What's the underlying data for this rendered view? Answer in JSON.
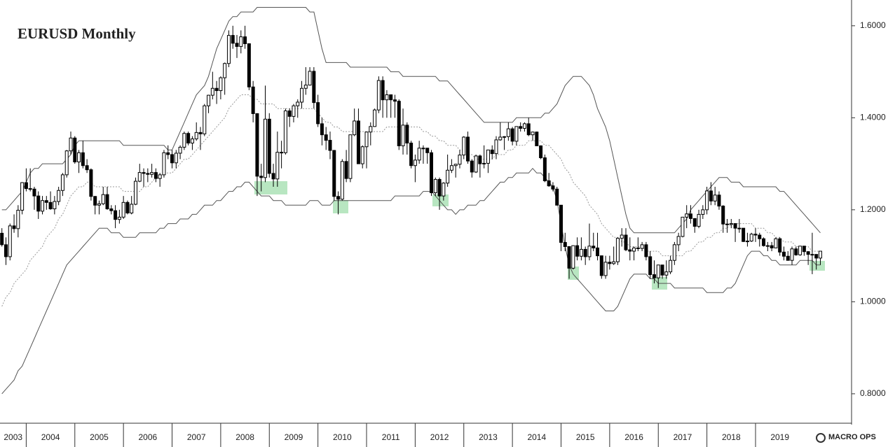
{
  "chart_data": {
    "type": "candlestick",
    "title": "EURUSD Monthly",
    "open": [
      1.149,
      1.124,
      1.098,
      1.165,
      1.159,
      1.199,
      1.259,
      1.246,
      1.245,
      1.23,
      1.197,
      1.22,
      1.216,
      1.202,
      1.218,
      1.242,
      1.276,
      1.328,
      1.356,
      1.304,
      1.324,
      1.296,
      1.287,
      1.229,
      1.21,
      1.213,
      1.233,
      1.202,
      1.198,
      1.179,
      1.184,
      1.216,
      1.193,
      1.212,
      1.262,
      1.281,
      1.279,
      1.277,
      1.281,
      1.268,
      1.276,
      1.324,
      1.32,
      1.302,
      1.323,
      1.336,
      1.366,
      1.345,
      1.354,
      1.368,
      1.365,
      1.426,
      1.449,
      1.464,
      1.459,
      1.487,
      1.518,
      1.579,
      1.562,
      1.555,
      1.576,
      1.561,
      1.467,
      1.409,
      1.273,
      1.27,
      1.397,
      1.279,
      1.267,
      1.325,
      1.324,
      1.415,
      1.403,
      1.426,
      1.434,
      1.464,
      1.471,
      1.501,
      1.433,
      1.387,
      1.363,
      1.351,
      1.329,
      1.229,
      1.223,
      1.305,
      1.268,
      1.363,
      1.393,
      1.3,
      1.337,
      1.369,
      1.381,
      1.417,
      1.481,
      1.439,
      1.45,
      1.439,
      1.436,
      1.339,
      1.384,
      1.345,
      1.296,
      1.308,
      1.334,
      1.334,
      1.324,
      1.237,
      1.266,
      1.23,
      1.258,
      1.286,
      1.296,
      1.299,
      1.319,
      1.358,
      1.306,
      1.282,
      1.317,
      1.3,
      1.301,
      1.33,
      1.322,
      1.352,
      1.358,
      1.359,
      1.376,
      1.349,
      1.381,
      1.377,
      1.387,
      1.363,
      1.369,
      1.339,
      1.313,
      1.263,
      1.252,
      1.245,
      1.21,
      1.129,
      1.12,
      1.073,
      1.122,
      1.099,
      1.114,
      1.098,
      1.121,
      1.117,
      1.1,
      1.057,
      1.086,
      1.083,
      1.087,
      1.138,
      1.145,
      1.113,
      1.11,
      1.117,
      1.116,
      1.124,
      1.098,
      1.059,
      1.052,
      1.08,
      1.058,
      1.065,
      1.09,
      1.124,
      1.142,
      1.184,
      1.191,
      1.181,
      1.164,
      1.19,
      1.2,
      1.241,
      1.219,
      1.232,
      1.208,
      1.169,
      1.168,
      1.17,
      1.16,
      1.16,
      1.131,
      1.132,
      1.147,
      1.145,
      1.137,
      1.122,
      1.122,
      1.117,
      1.137,
      1.108,
      1.099,
      1.09,
      1.115,
      1.102,
      1.121,
      1.109,
      1.103,
      1.103,
      1.095
    ],
    "high": [
      1.16,
      1.14,
      1.17,
      1.19,
      1.21,
      1.26,
      1.29,
      1.29,
      1.25,
      1.24,
      1.23,
      1.23,
      1.24,
      1.23,
      1.25,
      1.28,
      1.33,
      1.37,
      1.36,
      1.33,
      1.35,
      1.31,
      1.29,
      1.23,
      1.22,
      1.25,
      1.25,
      1.21,
      1.21,
      1.2,
      1.23,
      1.22,
      1.23,
      1.27,
      1.3,
      1.29,
      1.29,
      1.3,
      1.29,
      1.28,
      1.33,
      1.34,
      1.33,
      1.33,
      1.34,
      1.37,
      1.37,
      1.36,
      1.39,
      1.38,
      1.43,
      1.45,
      1.5,
      1.48,
      1.49,
      1.52,
      1.59,
      1.6,
      1.58,
      1.59,
      1.6,
      1.56,
      1.48,
      1.41,
      1.3,
      1.47,
      1.41,
      1.3,
      1.37,
      1.35,
      1.42,
      1.42,
      1.43,
      1.44,
      1.48,
      1.51,
      1.51,
      1.51,
      1.45,
      1.4,
      1.38,
      1.37,
      1.33,
      1.24,
      1.31,
      1.33,
      1.36,
      1.42,
      1.42,
      1.34,
      1.37,
      1.39,
      1.42,
      1.49,
      1.49,
      1.46,
      1.45,
      1.45,
      1.44,
      1.42,
      1.39,
      1.35,
      1.32,
      1.35,
      1.34,
      1.33,
      1.33,
      1.27,
      1.27,
      1.26,
      1.32,
      1.31,
      1.3,
      1.33,
      1.36,
      1.37,
      1.31,
      1.32,
      1.32,
      1.34,
      1.33,
      1.34,
      1.36,
      1.39,
      1.36,
      1.39,
      1.38,
      1.38,
      1.39,
      1.39,
      1.4,
      1.37,
      1.37,
      1.34,
      1.32,
      1.28,
      1.26,
      1.25,
      1.21,
      1.15,
      1.12,
      1.12,
      1.14,
      1.14,
      1.12,
      1.17,
      1.15,
      1.15,
      1.1,
      1.1,
      1.1,
      1.12,
      1.14,
      1.16,
      1.16,
      1.14,
      1.12,
      1.14,
      1.13,
      1.13,
      1.11,
      1.09,
      1.08,
      1.08,
      1.09,
      1.1,
      1.13,
      1.15,
      1.18,
      1.21,
      1.21,
      1.18,
      1.2,
      1.21,
      1.25,
      1.26,
      1.25,
      1.24,
      1.21,
      1.18,
      1.18,
      1.17,
      1.18,
      1.16,
      1.15,
      1.15,
      1.16,
      1.15,
      1.14,
      1.13,
      1.13,
      1.14,
      1.14,
      1.12,
      1.11,
      1.12,
      1.12,
      1.12,
      1.12,
      1.11,
      1.15,
      1.1,
      1.11
    ],
    "low": [
      1.12,
      1.08,
      1.09,
      1.15,
      1.14,
      1.19,
      1.24,
      1.24,
      1.2,
      1.18,
      1.19,
      1.2,
      1.2,
      1.19,
      1.21,
      1.23,
      1.27,
      1.32,
      1.3,
      1.28,
      1.29,
      1.28,
      1.22,
      1.19,
      1.19,
      1.21,
      1.2,
      1.19,
      1.16,
      1.17,
      1.18,
      1.19,
      1.19,
      1.21,
      1.26,
      1.25,
      1.26,
      1.27,
      1.26,
      1.25,
      1.27,
      1.31,
      1.29,
      1.29,
      1.31,
      1.33,
      1.34,
      1.33,
      1.35,
      1.33,
      1.36,
      1.41,
      1.44,
      1.43,
      1.44,
      1.45,
      1.51,
      1.55,
      1.53,
      1.54,
      1.55,
      1.46,
      1.39,
      1.23,
      1.24,
      1.26,
      1.27,
      1.25,
      1.25,
      1.29,
      1.32,
      1.38,
      1.39,
      1.4,
      1.42,
      1.45,
      1.47,
      1.42,
      1.38,
      1.34,
      1.33,
      1.31,
      1.22,
      1.19,
      1.22,
      1.26,
      1.26,
      1.36,
      1.3,
      1.29,
      1.29,
      1.34,
      1.38,
      1.41,
      1.4,
      1.4,
      1.4,
      1.4,
      1.33,
      1.32,
      1.32,
      1.29,
      1.26,
      1.3,
      1.3,
      1.3,
      1.23,
      1.23,
      1.2,
      1.22,
      1.25,
      1.28,
      1.27,
      1.29,
      1.31,
      1.3,
      1.27,
      1.28,
      1.27,
      1.29,
      1.28,
      1.31,
      1.31,
      1.35,
      1.33,
      1.35,
      1.34,
      1.34,
      1.37,
      1.37,
      1.36,
      1.35,
      1.34,
      1.31,
      1.26,
      1.25,
      1.24,
      1.21,
      1.11,
      1.11,
      1.05,
      1.07,
      1.09,
      1.09,
      1.08,
      1.09,
      1.11,
      1.09,
      1.05,
      1.05,
      1.07,
      1.08,
      1.08,
      1.12,
      1.11,
      1.09,
      1.09,
      1.11,
      1.11,
      1.09,
      1.05,
      1.04,
      1.03,
      1.05,
      1.05,
      1.06,
      1.08,
      1.11,
      1.14,
      1.16,
      1.17,
      1.15,
      1.16,
      1.18,
      1.19,
      1.21,
      1.21,
      1.2,
      1.15,
      1.15,
      1.16,
      1.13,
      1.15,
      1.13,
      1.12,
      1.13,
      1.13,
      1.12,
      1.12,
      1.11,
      1.11,
      1.12,
      1.1,
      1.09,
      1.09,
      1.08,
      1.1,
      1.1,
      1.1,
      1.08,
      1.06,
      1.07,
      1.08
    ],
    "close": [
      1.124,
      1.098,
      1.165,
      1.159,
      1.199,
      1.259,
      1.246,
      1.245,
      1.23,
      1.197,
      1.22,
      1.216,
      1.202,
      1.218,
      1.242,
      1.276,
      1.328,
      1.356,
      1.304,
      1.324,
      1.296,
      1.287,
      1.229,
      1.21,
      1.213,
      1.233,
      1.202,
      1.198,
      1.179,
      1.184,
      1.216,
      1.193,
      1.212,
      1.262,
      1.281,
      1.279,
      1.277,
      1.281,
      1.268,
      1.276,
      1.324,
      1.32,
      1.302,
      1.323,
      1.336,
      1.366,
      1.345,
      1.354,
      1.368,
      1.365,
      1.426,
      1.449,
      1.464,
      1.459,
      1.487,
      1.518,
      1.579,
      1.562,
      1.555,
      1.576,
      1.561,
      1.467,
      1.409,
      1.273,
      1.27,
      1.397,
      1.279,
      1.267,
      1.325,
      1.324,
      1.415,
      1.403,
      1.426,
      1.434,
      1.464,
      1.471,
      1.501,
      1.433,
      1.387,
      1.363,
      1.351,
      1.329,
      1.229,
      1.223,
      1.305,
      1.268,
      1.363,
      1.393,
      1.3,
      1.337,
      1.369,
      1.381,
      1.417,
      1.481,
      1.439,
      1.45,
      1.439,
      1.436,
      1.339,
      1.384,
      1.345,
      1.296,
      1.308,
      1.334,
      1.334,
      1.324,
      1.237,
      1.266,
      1.23,
      1.258,
      1.286,
      1.296,
      1.299,
      1.319,
      1.358,
      1.306,
      1.282,
      1.317,
      1.3,
      1.301,
      1.33,
      1.322,
      1.352,
      1.358,
      1.359,
      1.376,
      1.349,
      1.381,
      1.377,
      1.387,
      1.363,
      1.369,
      1.339,
      1.313,
      1.263,
      1.252,
      1.245,
      1.21,
      1.129,
      1.12,
      1.073,
      1.122,
      1.099,
      1.114,
      1.098,
      1.121,
      1.117,
      1.1,
      1.057,
      1.086,
      1.083,
      1.087,
      1.138,
      1.145,
      1.113,
      1.11,
      1.117,
      1.116,
      1.124,
      1.098,
      1.059,
      1.052,
      1.08,
      1.058,
      1.065,
      1.09,
      1.124,
      1.142,
      1.184,
      1.191,
      1.181,
      1.164,
      1.19,
      1.2,
      1.241,
      1.219,
      1.232,
      1.208,
      1.169,
      1.168,
      1.17,
      1.16,
      1.16,
      1.131,
      1.132,
      1.147,
      1.145,
      1.137,
      1.122,
      1.122,
      1.117,
      1.137,
      1.108,
      1.099,
      1.09,
      1.115,
      1.102,
      1.121,
      1.109,
      1.103,
      1.103,
      1.095,
      1.11
    ],
    "upper_band": [
      1.2,
      1.2,
      1.21,
      1.22,
      1.23,
      1.24,
      1.26,
      1.28,
      1.29,
      1.29,
      1.3,
      1.3,
      1.3,
      1.3,
      1.3,
      1.3,
      1.31,
      1.32,
      1.34,
      1.35,
      1.35,
      1.35,
      1.35,
      1.35,
      1.35,
      1.35,
      1.35,
      1.35,
      1.35,
      1.35,
      1.34,
      1.34,
      1.34,
      1.34,
      1.34,
      1.34,
      1.34,
      1.34,
      1.34,
      1.34,
      1.34,
      1.33,
      1.33,
      1.35,
      1.37,
      1.39,
      1.41,
      1.43,
      1.45,
      1.46,
      1.47,
      1.49,
      1.52,
      1.55,
      1.57,
      1.59,
      1.61,
      1.62,
      1.62,
      1.63,
      1.63,
      1.63,
      1.63,
      1.64,
      1.64,
      1.64,
      1.64,
      1.64,
      1.64,
      1.64,
      1.64,
      1.64,
      1.64,
      1.64,
      1.64,
      1.64,
      1.63,
      1.63,
      1.59,
      1.55,
      1.52,
      1.52,
      1.52,
      1.52,
      1.52,
      1.52,
      1.51,
      1.51,
      1.51,
      1.51,
      1.51,
      1.51,
      1.51,
      1.51,
      1.51,
      1.51,
      1.5,
      1.5,
      1.5,
      1.49,
      1.49,
      1.49,
      1.49,
      1.49,
      1.49,
      1.49,
      1.49,
      1.49,
      1.48,
      1.48,
      1.48,
      1.47,
      1.46,
      1.45,
      1.44,
      1.43,
      1.42,
      1.41,
      1.4,
      1.39,
      1.39,
      1.39,
      1.39,
      1.39,
      1.39,
      1.39,
      1.39,
      1.4,
      1.4,
      1.4,
      1.4,
      1.4,
      1.4,
      1.4,
      1.41,
      1.41,
      1.42,
      1.43,
      1.45,
      1.47,
      1.48,
      1.49,
      1.49,
      1.49,
      1.48,
      1.47,
      1.45,
      1.42,
      1.4,
      1.38,
      1.35,
      1.31,
      1.27,
      1.23,
      1.19,
      1.16,
      1.15,
      1.15,
      1.15,
      1.15,
      1.15,
      1.15,
      1.15,
      1.15,
      1.15,
      1.15,
      1.15,
      1.16,
      1.17,
      1.18,
      1.2,
      1.21,
      1.22,
      1.23,
      1.24,
      1.25,
      1.26,
      1.27,
      1.27,
      1.27,
      1.26,
      1.26,
      1.26,
      1.25,
      1.25,
      1.25,
      1.25,
      1.25,
      1.25,
      1.25,
      1.25,
      1.25,
      1.24,
      1.24,
      1.23,
      1.22,
      1.21,
      1.2,
      1.19,
      1.18,
      1.17,
      1.16,
      1.15
    ],
    "middle_band": [
      0.99,
      1.01,
      1.02,
      1.04,
      1.05,
      1.06,
      1.07,
      1.09,
      1.1,
      1.11,
      1.12,
      1.14,
      1.15,
      1.16,
      1.18,
      1.19,
      1.21,
      1.23,
      1.24,
      1.25,
      1.25,
      1.26,
      1.26,
      1.25,
      1.25,
      1.25,
      1.25,
      1.25,
      1.25,
      1.25,
      1.24,
      1.24,
      1.24,
      1.24,
      1.24,
      1.25,
      1.25,
      1.26,
      1.27,
      1.27,
      1.28,
      1.28,
      1.28,
      1.29,
      1.3,
      1.31,
      1.31,
      1.32,
      1.33,
      1.34,
      1.35,
      1.36,
      1.37,
      1.38,
      1.39,
      1.4,
      1.42,
      1.43,
      1.44,
      1.45,
      1.45,
      1.45,
      1.44,
      1.44,
      1.43,
      1.43,
      1.43,
      1.43,
      1.42,
      1.42,
      1.42,
      1.42,
      1.42,
      1.42,
      1.42,
      1.42,
      1.42,
      1.42,
      1.41,
      1.4,
      1.39,
      1.39,
      1.38,
      1.38,
      1.37,
      1.37,
      1.37,
      1.37,
      1.37,
      1.37,
      1.37,
      1.37,
      1.37,
      1.37,
      1.37,
      1.38,
      1.38,
      1.38,
      1.38,
      1.38,
      1.38,
      1.38,
      1.38,
      1.38,
      1.37,
      1.37,
      1.36,
      1.36,
      1.35,
      1.35,
      1.34,
      1.34,
      1.34,
      1.33,
      1.33,
      1.32,
      1.32,
      1.31,
      1.31,
      1.31,
      1.31,
      1.31,
      1.32,
      1.32,
      1.32,
      1.33,
      1.33,
      1.34,
      1.34,
      1.34,
      1.35,
      1.35,
      1.35,
      1.35,
      1.34,
      1.34,
      1.33,
      1.32,
      1.31,
      1.29,
      1.28,
      1.26,
      1.25,
      1.24,
      1.23,
      1.21,
      1.2,
      1.19,
      1.17,
      1.16,
      1.15,
      1.14,
      1.14,
      1.13,
      1.13,
      1.12,
      1.12,
      1.12,
      1.12,
      1.11,
      1.11,
      1.11,
      1.11,
      1.1,
      1.1,
      1.1,
      1.1,
      1.1,
      1.1,
      1.11,
      1.11,
      1.12,
      1.13,
      1.13,
      1.14,
      1.14,
      1.15,
      1.15,
      1.16,
      1.16,
      1.17,
      1.17,
      1.17,
      1.17,
      1.17,
      1.17,
      1.16,
      1.16,
      1.16,
      1.15,
      1.15,
      1.14,
      1.14,
      1.13,
      1.13,
      1.13,
      1.12,
      1.12,
      1.12,
      1.12,
      1.11,
      1.11,
      1.11
    ],
    "lower_band": [
      0.8,
      0.81,
      0.82,
      0.83,
      0.85,
      0.86,
      0.88,
      0.9,
      0.92,
      0.94,
      0.96,
      0.98,
      1.0,
      1.02,
      1.04,
      1.06,
      1.08,
      1.09,
      1.1,
      1.11,
      1.12,
      1.13,
      1.14,
      1.15,
      1.16,
      1.16,
      1.16,
      1.15,
      1.15,
      1.15,
      1.14,
      1.14,
      1.14,
      1.14,
      1.15,
      1.15,
      1.15,
      1.15,
      1.15,
      1.16,
      1.16,
      1.17,
      1.17,
      1.17,
      1.18,
      1.18,
      1.18,
      1.19,
      1.19,
      1.2,
      1.21,
      1.21,
      1.21,
      1.22,
      1.22,
      1.23,
      1.24,
      1.24,
      1.25,
      1.25,
      1.26,
      1.26,
      1.25,
      1.24,
      1.23,
      1.23,
      1.23,
      1.22,
      1.22,
      1.22,
      1.21,
      1.21,
      1.21,
      1.21,
      1.21,
      1.21,
      1.22,
      1.22,
      1.22,
      1.21,
      1.21,
      1.21,
      1.22,
      1.22,
      1.22,
      1.22,
      1.22,
      1.22,
      1.22,
      1.22,
      1.22,
      1.22,
      1.22,
      1.22,
      1.22,
      1.22,
      1.22,
      1.23,
      1.23,
      1.23,
      1.23,
      1.23,
      1.23,
      1.23,
      1.24,
      1.24,
      1.24,
      1.23,
      1.22,
      1.21,
      1.2,
      1.2,
      1.19,
      1.2,
      1.2,
      1.21,
      1.21,
      1.21,
      1.22,
      1.22,
      1.23,
      1.24,
      1.25,
      1.26,
      1.26,
      1.27,
      1.27,
      1.28,
      1.28,
      1.28,
      1.28,
      1.29,
      1.28,
      1.28,
      1.27,
      1.26,
      1.25,
      1.22,
      1.17,
      1.12,
      1.08,
      1.06,
      1.05,
      1.04,
      1.03,
      1.02,
      1.01,
      1.0,
      0.99,
      0.98,
      0.98,
      0.98,
      0.99,
      1.01,
      1.03,
      1.05,
      1.06,
      1.06,
      1.06,
      1.06,
      1.05,
      1.05,
      1.04,
      1.04,
      1.04,
      1.04,
      1.03,
      1.03,
      1.03,
      1.03,
      1.03,
      1.03,
      1.03,
      1.03,
      1.02,
      1.02,
      1.02,
      1.02,
      1.02,
      1.03,
      1.03,
      1.04,
      1.06,
      1.08,
      1.1,
      1.11,
      1.11,
      1.11,
      1.1,
      1.1,
      1.09,
      1.09,
      1.08,
      1.08,
      1.08,
      1.08,
      1.08,
      1.09,
      1.09,
      1.09,
      1.09,
      1.08,
      1.08
    ],
    "band_color": "#555555",
    "middle_color": "#999999",
    "up_color": "#ffffff",
    "down_color": "#000000",
    "xlim": [
      -0.47,
      209.7
    ],
    "xticks": [
      {
        "value": -6,
        "label": "2003"
      },
      {
        "value": 6,
        "label": "2004"
      },
      {
        "value": 18,
        "label": "2005"
      },
      {
        "value": 30,
        "label": "2006"
      },
      {
        "value": 42,
        "label": "2007"
      },
      {
        "value": 54,
        "label": "2008"
      },
      {
        "value": 66,
        "label": "2009"
      },
      {
        "value": 78,
        "label": "2010"
      },
      {
        "value": 90,
        "label": "2011"
      },
      {
        "value": 102,
        "label": "2012"
      },
      {
        "value": 114,
        "label": "2013"
      },
      {
        "value": 126,
        "label": "2014"
      },
      {
        "value": 138,
        "label": "2015"
      },
      {
        "value": 150,
        "label": "2016"
      },
      {
        "value": 162,
        "label": "2017"
      },
      {
        "value": 174,
        "label": "2018"
      },
      {
        "value": 186,
        "label": "2019"
      }
    ],
    "ylim": [
      0.736,
      1.656
    ],
    "yticks": [
      {
        "value": 0.8,
        "label": "0.8000"
      },
      {
        "value": 1.0,
        "label": "1.0000"
      },
      {
        "value": 1.2,
        "label": "1.2000"
      },
      {
        "value": 1.4,
        "label": "1.4000"
      },
      {
        "value": 1.6,
        "label": "1.6000"
      }
    ],
    "watermark": "MACRO OPS"
  }
}
